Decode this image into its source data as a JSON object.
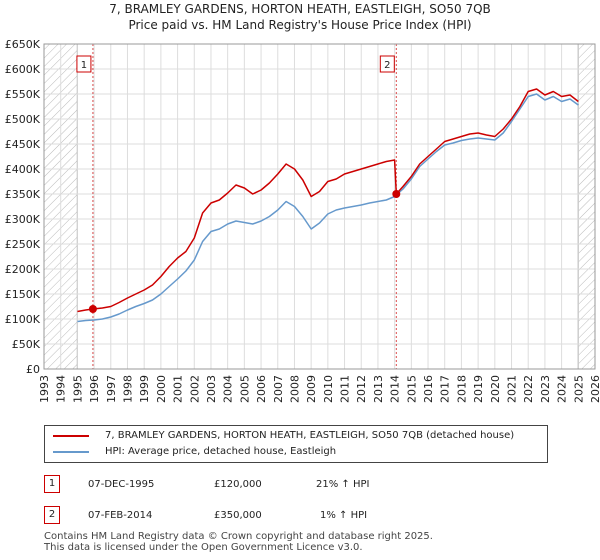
{
  "header": {
    "title_line1": "7, BRAMLEY GARDENS, HORTON HEATH, EASTLEIGH, SO50 7QB",
    "title_line2": "Price paid vs. HM Land Registry's House Price Index (HPI)"
  },
  "colors": {
    "property": "#cc0000",
    "hpi": "#6699cc",
    "grid": "#dddddd",
    "hatch": "#bbbbbb",
    "marker": "#cc0000"
  },
  "chart_data": {
    "type": "line",
    "title": "7, BRAMLEY GARDENS, HORTON HEATH, EASTLEIGH, SO50 7QB — Price paid vs. HM Land Registry's House Price Index (HPI)",
    "xlabel": "",
    "ylabel": "",
    "xlim": [
      1993,
      2026
    ],
    "ylim": [
      0,
      650000
    ],
    "x_ticks": [
      1993,
      1994,
      1995,
      1996,
      1997,
      1998,
      1999,
      2000,
      2001,
      2002,
      2003,
      2004,
      2005,
      2006,
      2007,
      2008,
      2009,
      2010,
      2011,
      2012,
      2013,
      2014,
      2015,
      2016,
      2017,
      2018,
      2019,
      2020,
      2021,
      2022,
      2023,
      2024,
      2025,
      2026
    ],
    "y_ticks": [
      {
        "value": 0,
        "label": "£0"
      },
      {
        "value": 50000,
        "label": "£50K"
      },
      {
        "value": 100000,
        "label": "£100K"
      },
      {
        "value": 150000,
        "label": "£150K"
      },
      {
        "value": 200000,
        "label": "£200K"
      },
      {
        "value": 250000,
        "label": "£250K"
      },
      {
        "value": 300000,
        "label": "£300K"
      },
      {
        "value": 350000,
        "label": "£350K"
      },
      {
        "value": 400000,
        "label": "£400K"
      },
      {
        "value": 450000,
        "label": "£450K"
      },
      {
        "value": 500000,
        "label": "£500K"
      },
      {
        "value": 550000,
        "label": "£550K"
      },
      {
        "value": 600000,
        "label": "£600K"
      },
      {
        "value": 650000,
        "label": "£650K"
      }
    ],
    "hatched_ranges": [
      [
        1993,
        1995.0
      ],
      [
        2025.0,
        2026
      ]
    ],
    "series": [
      {
        "name": "7, BRAMLEY GARDENS, HORTON HEATH, EASTLEIGH, SO50 7QB (detached house)",
        "color": "#cc0000",
        "x": [
          1995.0,
          1995.5,
          1995.93,
          1996.5,
          1997.0,
          1997.5,
          1998.0,
          1998.5,
          1999.0,
          1999.5,
          2000.0,
          2000.5,
          2001.0,
          2001.5,
          2002.0,
          2002.5,
          2003.0,
          2003.5,
          2004.0,
          2004.5,
          2005.0,
          2005.5,
          2006.0,
          2006.5,
          2007.0,
          2007.5,
          2008.0,
          2008.5,
          2009.0,
          2009.5,
          2010.0,
          2010.5,
          2011.0,
          2011.5,
          2012.0,
          2012.5,
          2013.0,
          2013.5,
          2014.0,
          2014.1,
          2014.5,
          2015.0,
          2015.5,
          2016.0,
          2016.5,
          2017.0,
          2017.5,
          2018.0,
          2018.5,
          2019.0,
          2019.5,
          2020.0,
          2020.5,
          2021.0,
          2021.5,
          2022.0,
          2022.5,
          2023.0,
          2023.5,
          2024.0,
          2024.5,
          2025.0
        ],
        "values": [
          115000,
          118000,
          120000,
          122000,
          125000,
          133000,
          142000,
          150000,
          158000,
          168000,
          185000,
          205000,
          222000,
          235000,
          262000,
          312000,
          332000,
          338000,
          352000,
          368000,
          362000,
          350000,
          358000,
          372000,
          390000,
          410000,
          400000,
          378000,
          345000,
          355000,
          375000,
          380000,
          390000,
          395000,
          400000,
          405000,
          410000,
          415000,
          418000,
          350000,
          365000,
          385000,
          410000,
          425000,
          440000,
          455000,
          460000,
          465000,
          470000,
          472000,
          468000,
          465000,
          480000,
          500000,
          525000,
          555000,
          560000,
          548000,
          555000,
          545000,
          548000,
          535000
        ]
      },
      {
        "name": "HPI: Average price, detached house, Eastleigh",
        "color": "#6699cc",
        "x": [
          1995.0,
          1995.5,
          1996.0,
          1996.5,
          1997.0,
          1997.5,
          1998.0,
          1998.5,
          1999.0,
          1999.5,
          2000.0,
          2000.5,
          2001.0,
          2001.5,
          2002.0,
          2002.5,
          2003.0,
          2003.5,
          2004.0,
          2004.5,
          2005.0,
          2005.5,
          2006.0,
          2006.5,
          2007.0,
          2007.5,
          2008.0,
          2008.5,
          2009.0,
          2009.5,
          2010.0,
          2010.5,
          2011.0,
          2011.5,
          2012.0,
          2012.5,
          2013.0,
          2013.5,
          2014.0,
          2014.5,
          2015.0,
          2015.5,
          2016.0,
          2016.5,
          2017.0,
          2017.5,
          2018.0,
          2018.5,
          2019.0,
          2019.5,
          2020.0,
          2020.5,
          2021.0,
          2021.5,
          2022.0,
          2022.5,
          2023.0,
          2023.5,
          2024.0,
          2024.5,
          2025.0
        ],
        "values": [
          95000,
          97000,
          98000,
          100000,
          104000,
          110000,
          118000,
          125000,
          131000,
          138000,
          150000,
          165000,
          180000,
          196000,
          218000,
          255000,
          275000,
          280000,
          290000,
          296000,
          293000,
          290000,
          296000,
          305000,
          318000,
          335000,
          325000,
          305000,
          280000,
          292000,
          310000,
          318000,
          322000,
          325000,
          328000,
          332000,
          335000,
          338000,
          345000,
          360000,
          380000,
          405000,
          420000,
          435000,
          448000,
          452000,
          457000,
          460000,
          462000,
          460000,
          458000,
          472000,
          495000,
          520000,
          545000,
          550000,
          538000,
          545000,
          535000,
          540000,
          528000
        ]
      }
    ],
    "transactions": [
      {
        "id": "1",
        "x": 1995.93,
        "value": 120000
      },
      {
        "id": "2",
        "x": 2014.1,
        "value": 350000
      }
    ]
  },
  "legend": {
    "property_label": "7, BRAMLEY GARDENS, HORTON HEATH, EASTLEIGH, SO50 7QB (detached house)",
    "hpi_label": "HPI: Average price, detached house, Eastleigh"
  },
  "transactions_table": [
    {
      "id": "1",
      "date": "07-DEC-1995",
      "price": "£120,000",
      "hpi": "21% ↑ HPI"
    },
    {
      "id": "2",
      "date": "07-FEB-2014",
      "price": "£350,000",
      "hpi": "1% ↑ HPI"
    }
  ],
  "footer": {
    "line1": "Contains HM Land Registry data © Crown copyright and database right 2025.",
    "line2": "This data is licensed under the Open Government Licence v3.0."
  }
}
